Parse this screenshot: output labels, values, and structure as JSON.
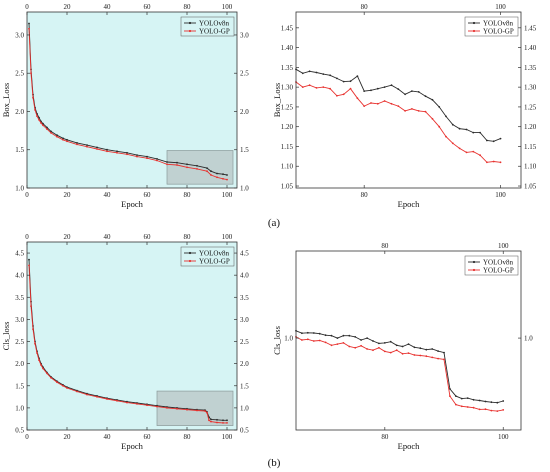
{
  "captions": [
    "(a)",
    "(b)"
  ],
  "colors": {
    "yolov8n": "#2b2b2b",
    "yologp": "#e8322f",
    "plot_bg": "#d6f4f4",
    "zoom_box": "#b8c6c6"
  },
  "chart_data": [
    {
      "id": "box-full",
      "type": "line",
      "xlabel": "Epoch",
      "ylabel": "Box_Loss",
      "xlim": [
        0,
        105
      ],
      "ylim": [
        1.0,
        3.3
      ],
      "xticks": [
        0,
        20,
        40,
        60,
        80,
        100
      ],
      "yticks": [
        1.0,
        1.5,
        2.0,
        2.5,
        3.0
      ],
      "ytick_labels": [
        "1.0",
        "1.5",
        "2.0",
        "2.5",
        "3.0"
      ],
      "background": "cyan",
      "zoom_region": {
        "x": [
          70,
          103
        ],
        "y": [
          1.05,
          1.49
        ]
      },
      "legend": "top-right",
      "series": [
        {
          "name": "YOLOv8n",
          "x": [
            1,
            2,
            3,
            4,
            5,
            6,
            7,
            8,
            10,
            12,
            15,
            18,
            20,
            25,
            30,
            35,
            40,
            45,
            50,
            55,
            60,
            65,
            70,
            75,
            80,
            85,
            90,
            92,
            95,
            98,
            100
          ],
          "values": [
            3.15,
            2.55,
            2.22,
            2.05,
            1.97,
            1.92,
            1.87,
            1.84,
            1.79,
            1.74,
            1.69,
            1.65,
            1.63,
            1.59,
            1.56,
            1.53,
            1.5,
            1.48,
            1.46,
            1.43,
            1.41,
            1.38,
            1.34,
            1.33,
            1.31,
            1.29,
            1.26,
            1.22,
            1.19,
            1.18,
            1.17
          ]
        },
        {
          "name": "YOLO-GP",
          "x": [
            1,
            2,
            3,
            4,
            5,
            6,
            7,
            8,
            10,
            12,
            15,
            18,
            20,
            25,
            30,
            35,
            40,
            45,
            50,
            55,
            60,
            65,
            70,
            75,
            80,
            85,
            90,
            92,
            95,
            98,
            100
          ],
          "values": [
            3.08,
            2.5,
            2.18,
            2.02,
            1.94,
            1.89,
            1.85,
            1.82,
            1.77,
            1.72,
            1.67,
            1.63,
            1.61,
            1.57,
            1.54,
            1.51,
            1.48,
            1.46,
            1.44,
            1.41,
            1.39,
            1.36,
            1.31,
            1.3,
            1.27,
            1.25,
            1.22,
            1.17,
            1.14,
            1.12,
            1.11
          ]
        }
      ]
    },
    {
      "id": "box-zoom",
      "type": "line",
      "xlabel": "Epoch",
      "ylabel": "Box_Loss",
      "xlim": [
        70,
        103
      ],
      "ylim": [
        1.045,
        1.49
      ],
      "xticks": [
        80,
        100
      ],
      "yticks": [
        1.05,
        1.1,
        1.15,
        1.2,
        1.25,
        1.3,
        1.35,
        1.4,
        1.45
      ],
      "ytick_labels": [
        "1.05",
        "1.10",
        "1.15",
        "1.20",
        "1.25",
        "1.30",
        "1.35",
        "1.40",
        "1.45"
      ],
      "legend": "top-right",
      "series": [
        {
          "name": "YOLOv8n",
          "x": [
            70,
            71,
            72,
            73,
            74,
            75,
            76,
            77,
            78,
            79,
            80,
            81,
            82,
            83,
            84,
            85,
            86,
            87,
            88,
            89,
            90,
            91,
            92,
            93,
            94,
            95,
            96,
            97,
            98,
            99,
            100
          ],
          "values": [
            1.345,
            1.335,
            1.34,
            1.337,
            1.333,
            1.33,
            1.322,
            1.314,
            1.315,
            1.328,
            1.29,
            1.292,
            1.296,
            1.3,
            1.305,
            1.295,
            1.282,
            1.29,
            1.288,
            1.277,
            1.268,
            1.25,
            1.226,
            1.205,
            1.195,
            1.193,
            1.185,
            1.185,
            1.165,
            1.163,
            1.17
          ]
        },
        {
          "name": "YOLO-GP",
          "x": [
            70,
            71,
            72,
            73,
            74,
            75,
            76,
            77,
            78,
            79,
            80,
            81,
            82,
            83,
            84,
            85,
            86,
            87,
            88,
            89,
            90,
            91,
            92,
            93,
            94,
            95,
            96,
            97,
            98,
            99,
            100
          ],
          "values": [
            1.313,
            1.3,
            1.305,
            1.298,
            1.3,
            1.296,
            1.278,
            1.282,
            1.296,
            1.272,
            1.252,
            1.26,
            1.258,
            1.265,
            1.258,
            1.252,
            1.24,
            1.245,
            1.24,
            1.238,
            1.22,
            1.2,
            1.175,
            1.158,
            1.145,
            1.135,
            1.137,
            1.128,
            1.11,
            1.112,
            1.11
          ]
        }
      ]
    },
    {
      "id": "cls-full",
      "type": "line",
      "xlabel": "Epoch",
      "ylabel": "Cls_loss",
      "xlim": [
        0,
        105
      ],
      "ylim": [
        0.5,
        4.75
      ],
      "xticks": [
        0,
        20,
        40,
        60,
        80,
        100
      ],
      "yticks": [
        0.5,
        1.0,
        1.5,
        2.0,
        2.5,
        3.0,
        3.5,
        4.0,
        4.5
      ],
      "ytick_labels": [
        "0.5",
        "1.0",
        "1.5",
        "2.0",
        "2.5",
        "3.0",
        "3.5",
        "4.0",
        "4.5"
      ],
      "background": "cyan",
      "zoom_region": {
        "x": [
          65,
          103
        ],
        "y": [
          0.6,
          1.38
        ]
      },
      "legend": "top-right",
      "series": [
        {
          "name": "YOLOv8n",
          "x": [
            1,
            2,
            3,
            4,
            5,
            6,
            7,
            8,
            10,
            12,
            15,
            18,
            20,
            25,
            30,
            35,
            40,
            45,
            50,
            55,
            60,
            65,
            70,
            75,
            80,
            85,
            89,
            90,
            91,
            92,
            95,
            98,
            100
          ],
          "values": [
            4.35,
            3.4,
            2.85,
            2.5,
            2.28,
            2.12,
            2.0,
            1.92,
            1.8,
            1.7,
            1.6,
            1.52,
            1.47,
            1.39,
            1.32,
            1.27,
            1.22,
            1.18,
            1.14,
            1.11,
            1.08,
            1.05,
            1.02,
            1.0,
            0.98,
            0.96,
            0.95,
            0.91,
            0.79,
            0.74,
            0.73,
            0.72,
            0.72
          ]
        },
        {
          "name": "YOLO-GP",
          "x": [
            1,
            2,
            3,
            4,
            5,
            6,
            7,
            8,
            10,
            12,
            15,
            18,
            20,
            25,
            30,
            35,
            40,
            45,
            50,
            55,
            60,
            65,
            70,
            75,
            80,
            85,
            89,
            90,
            91,
            92,
            95,
            98,
            100
          ],
          "values": [
            4.22,
            3.3,
            2.78,
            2.45,
            2.24,
            2.08,
            1.97,
            1.89,
            1.78,
            1.68,
            1.58,
            1.5,
            1.45,
            1.37,
            1.3,
            1.25,
            1.2,
            1.16,
            1.12,
            1.09,
            1.06,
            1.03,
            1.0,
            0.98,
            0.96,
            0.94,
            0.93,
            0.89,
            0.72,
            0.69,
            0.67,
            0.66,
            0.66
          ]
        }
      ]
    },
    {
      "id": "cls-zoom",
      "type": "line",
      "xlabel": "Epoch",
      "ylabel": "Cls_loss",
      "xlim": [
        65,
        103
      ],
      "ylim": [
        0.62,
        1.36
      ],
      "xticks": [
        80,
        100
      ],
      "yticks": [
        1.0
      ],
      "ytick_labels": [
        "1.0"
      ],
      "legend": "top-right",
      "series": [
        {
          "name": "YOLOv8n",
          "x": [
            65,
            66,
            67,
            68,
            69,
            70,
            71,
            72,
            73,
            74,
            75,
            76,
            77,
            78,
            79,
            80,
            81,
            82,
            83,
            84,
            85,
            86,
            87,
            88,
            89,
            90,
            91,
            92,
            93,
            94,
            95,
            96,
            97,
            98,
            99,
            100
          ],
          "values": [
            1.03,
            1.02,
            1.022,
            1.021,
            1.018,
            1.012,
            1.01,
            1.0,
            1.01,
            1.01,
            1.005,
            0.992,
            1.0,
            0.988,
            0.978,
            0.98,
            0.985,
            0.97,
            0.965,
            0.975,
            0.962,
            0.958,
            0.952,
            0.955,
            0.946,
            0.94,
            0.79,
            0.76,
            0.75,
            0.752,
            0.745,
            0.742,
            0.738,
            0.735,
            0.733,
            0.74
          ]
        },
        {
          "name": "YOLO-GP",
          "x": [
            65,
            66,
            67,
            68,
            69,
            70,
            71,
            72,
            73,
            74,
            75,
            76,
            77,
            78,
            79,
            80,
            81,
            82,
            83,
            84,
            85,
            86,
            87,
            88,
            89,
            90,
            91,
            92,
            93,
            94,
            95,
            96,
            97,
            98,
            99,
            100
          ],
          "values": [
            1.005,
            0.992,
            0.995,
            0.988,
            0.99,
            0.982,
            0.97,
            0.975,
            0.98,
            0.965,
            0.96,
            0.968,
            0.955,
            0.95,
            0.96,
            0.945,
            0.94,
            0.95,
            0.935,
            0.938,
            0.93,
            0.928,
            0.925,
            0.92,
            0.915,
            0.912,
            0.76,
            0.725,
            0.718,
            0.715,
            0.712,
            0.705,
            0.706,
            0.7,
            0.698,
            0.703
          ]
        }
      ]
    }
  ]
}
